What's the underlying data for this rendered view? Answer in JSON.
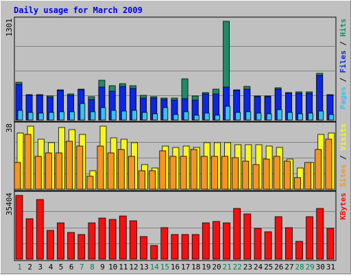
{
  "chart_data": {
    "type": "bar",
    "title": "Daily usage for March 2009",
    "categories": [
      "1",
      "2",
      "3",
      "4",
      "5",
      "6",
      "7",
      "8",
      "9",
      "10",
      "11",
      "12",
      "13",
      "14",
      "15",
      "16",
      "17",
      "18",
      "19",
      "20",
      "21",
      "22",
      "23",
      "24",
      "25",
      "26",
      "27",
      "28",
      "29",
      "30",
      "31"
    ],
    "weekend_categories": [
      "1",
      "7",
      "8",
      "14",
      "15",
      "21",
      "22",
      "28",
      "29"
    ],
    "panels": [
      {
        "name": "hits-files-pages",
        "scale_label": "1301",
        "ylim": [
          0,
          1301
        ],
        "right_label": [
          "Pages",
          "Files",
          "Hits"
        ],
        "series": [
          {
            "name": "Hits",
            "color": "#218a66",
            "values": [
              500,
              335,
              335,
              315,
              395,
              345,
              410,
              310,
              520,
              450,
              480,
              455,
              325,
              310,
              290,
              290,
              545,
              315,
              365,
              405,
              1301,
              395,
              445,
              320,
              320,
              425,
              365,
              370,
              370,
              615,
              335
            ]
          },
          {
            "name": "Files",
            "color": "#0a26e8",
            "values": [
              470,
              325,
              325,
              300,
              385,
              325,
              395,
              275,
              430,
              380,
              440,
              420,
              285,
              285,
              275,
              265,
              280,
              265,
              345,
              340,
              430,
              390,
              410,
              305,
              310,
              405,
              355,
              355,
              355,
              585,
              325
            ]
          },
          {
            "name": "Pages",
            "color": "#33c4ee",
            "values": [
              125,
              95,
              90,
              95,
              110,
              110,
              220,
              110,
              165,
              125,
              120,
              130,
              95,
              85,
              165,
              75,
              110,
              60,
              90,
              65,
              180,
              100,
              110,
              90,
              85,
              135,
              100,
              80,
              90,
              115,
              70
            ]
          }
        ]
      },
      {
        "name": "visits-sites",
        "scale_label": "38",
        "ylim": [
          0,
          38
        ],
        "right_label": [
          "Sites",
          "Visits"
        ],
        "series": [
          {
            "name": "Visits",
            "color": "#f7f71e",
            "values": [
              34,
              38,
              30,
              28,
              37,
              36,
              33,
              11,
              38,
              31,
              30,
              28,
              15,
              13,
              26,
              25,
              26,
              25,
              28,
              28,
              28,
              27,
              27,
              27,
              26,
              25,
              18,
              13,
              16,
              33,
              34
            ]
          },
          {
            "name": "Sites",
            "color": "#f79420",
            "values": [
              16,
              33,
              20,
              22,
              22,
              29,
              26,
              8,
              26,
              22,
              24,
              20,
              11,
              11,
              23,
              20,
              20,
              24,
              20,
              20,
              20,
              19,
              17,
              15,
              18,
              20,
              17,
              7,
              16,
              24,
              30
            ]
          }
        ]
      },
      {
        "name": "kbytes",
        "scale_label": "35404",
        "ylim": [
          0,
          35404
        ],
        "right_label": [
          "KBytes"
        ],
        "series": [
          {
            "name": "KBytes",
            "color": "#f50f0f",
            "values": [
              35404,
              22500,
              33000,
              16000,
              20000,
              15000,
              13700,
              20000,
              23000,
              22000,
              24000,
              21500,
              12500,
              7700,
              17500,
              13800,
              13800,
              13800,
              20000,
              21000,
              20000,
              28000,
              25000,
              17300,
              15300,
              23500,
              17400,
              10000,
              23500,
              28000,
              17300
            ]
          }
        ]
      }
    ]
  }
}
